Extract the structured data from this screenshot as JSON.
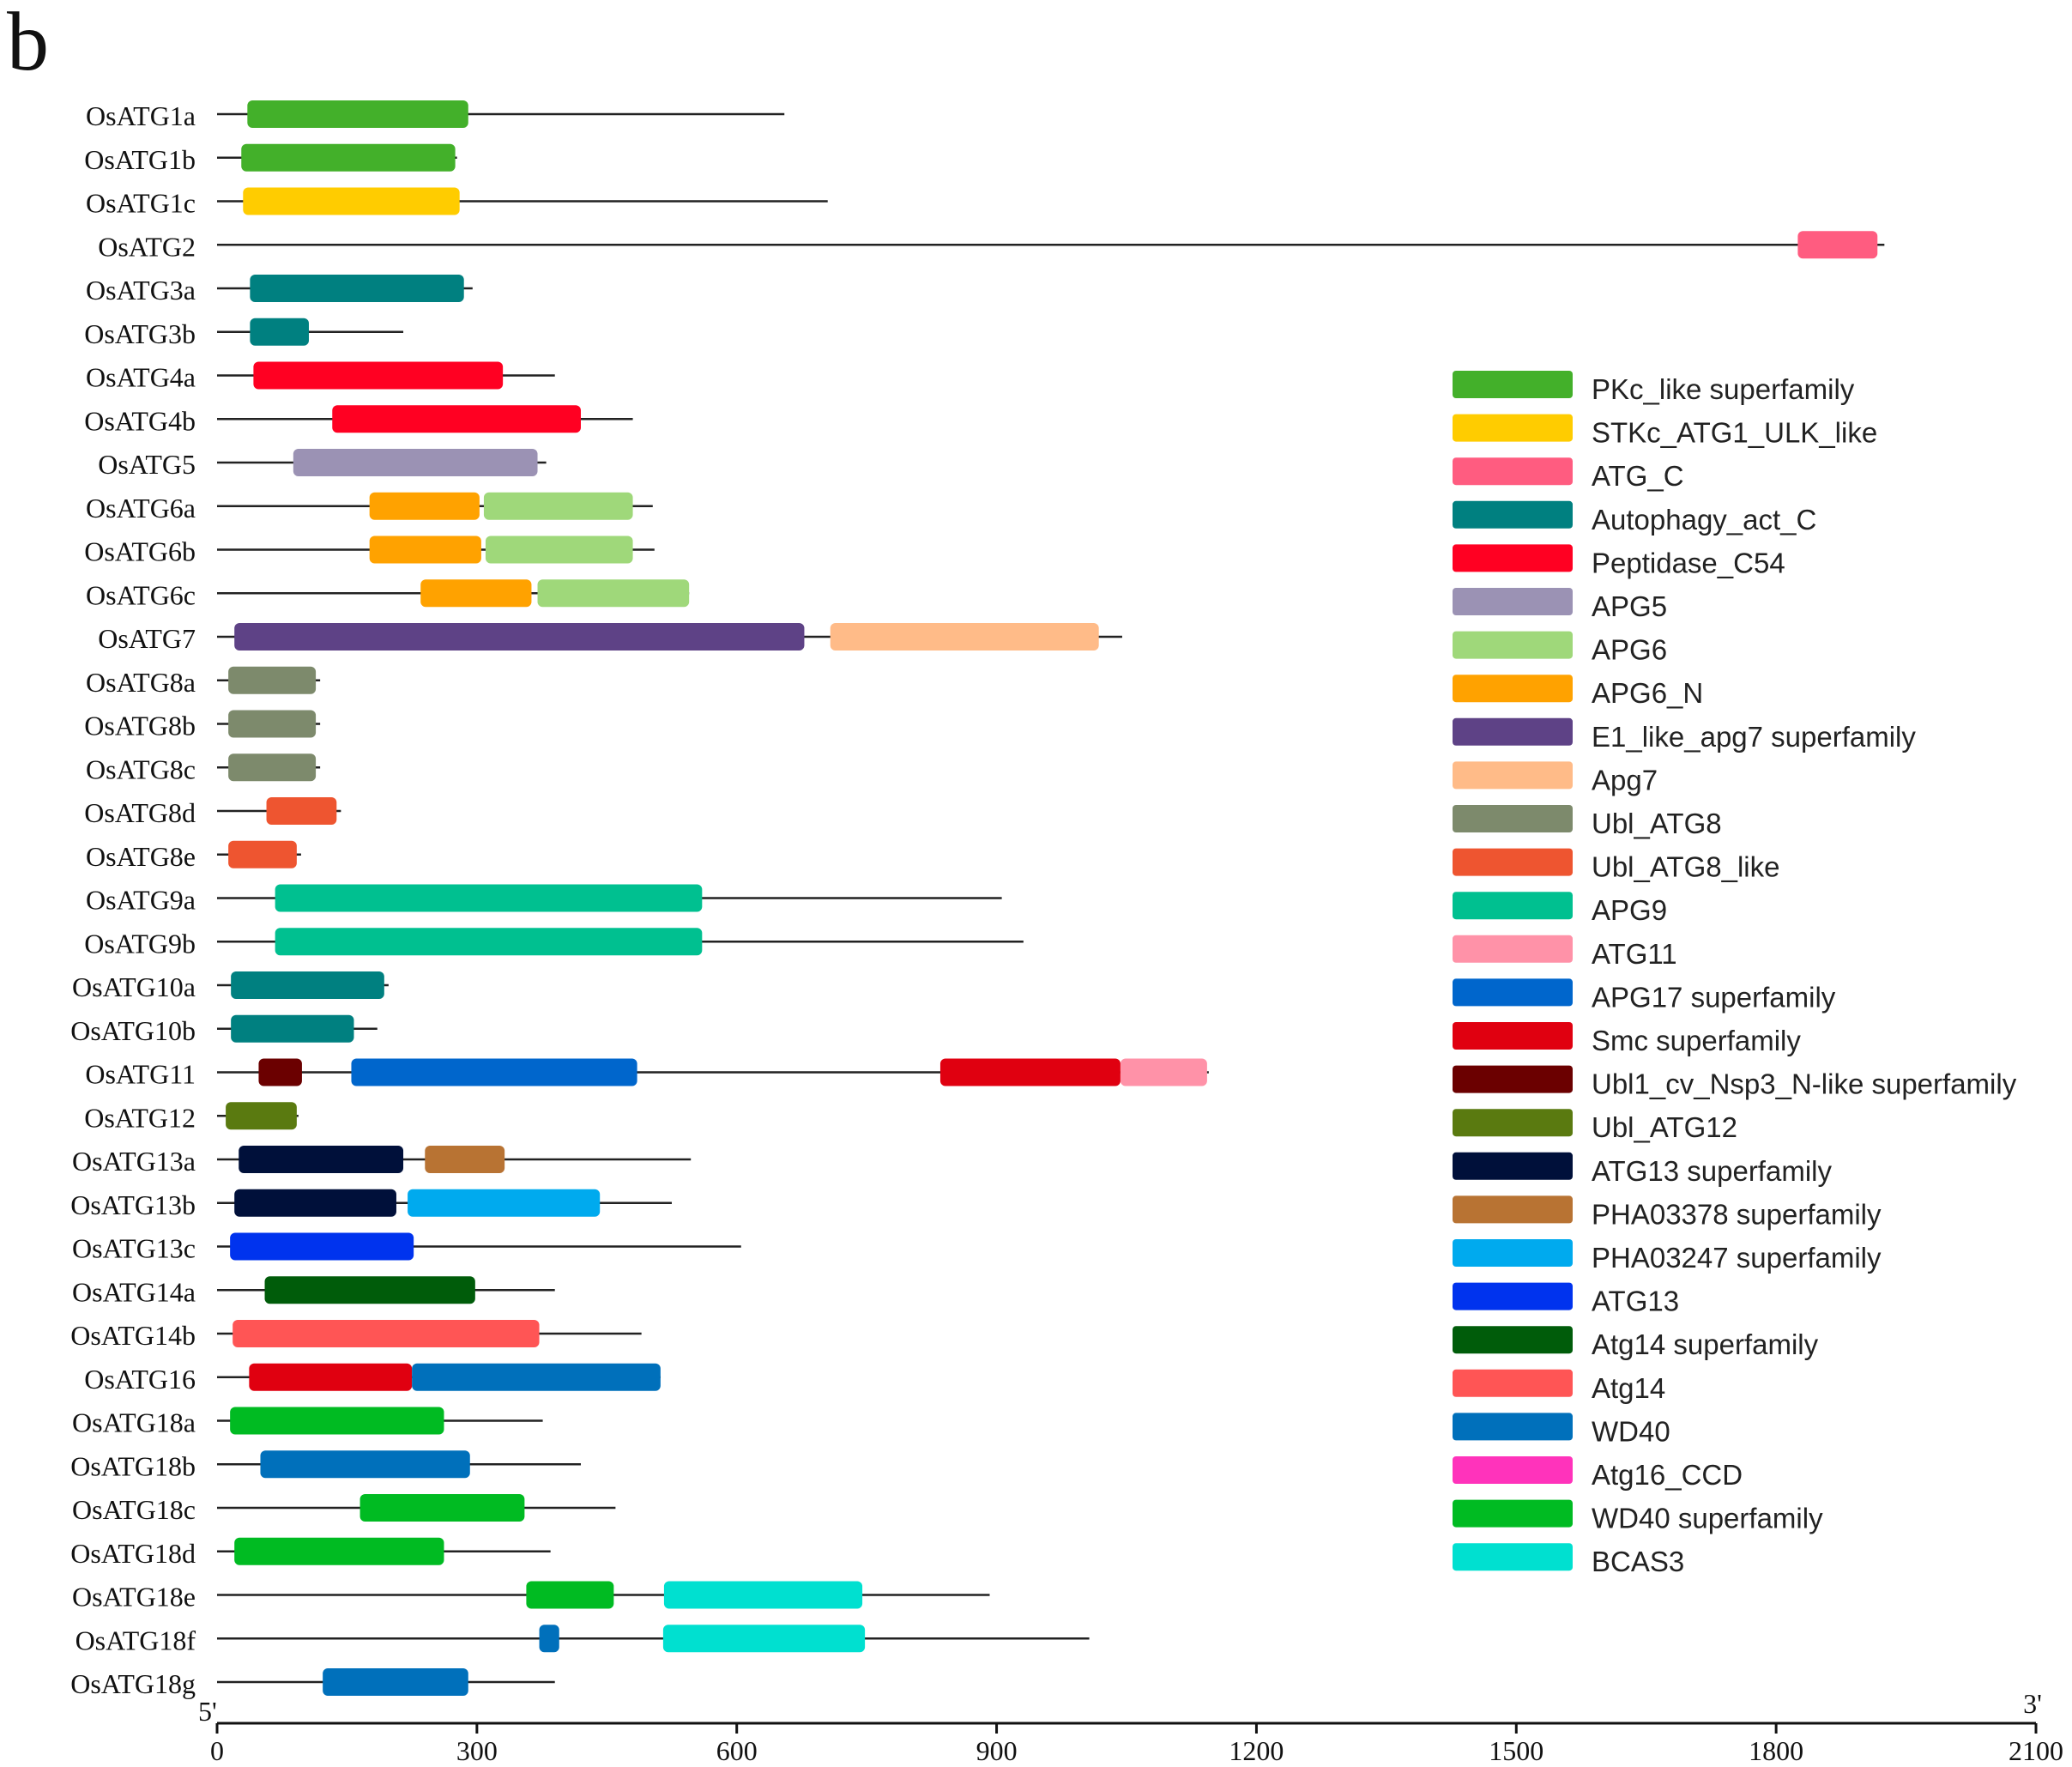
{
  "panel_letter": "b",
  "chart_data": {
    "type": "protein-domain-architecture",
    "x_axis": {
      "range": [
        0,
        2100
      ],
      "ticks": [
        0,
        300,
        600,
        900,
        1200,
        1500,
        1800,
        2100
      ],
      "start_label": "5'",
      "end_label": "3'"
    },
    "domains": [
      {
        "name": "PKc_like superfamily",
        "color": "#43b02a"
      },
      {
        "name": "STKc_ATG1_ULK_like",
        "color": "#ffcc00"
      },
      {
        "name": "ATG_C",
        "color": "#ff5c80"
      },
      {
        "name": "Autophagy_act_C",
        "color": "#008080"
      },
      {
        "name": "Peptidase_C54",
        "color": "#ff0022"
      },
      {
        "name": "APG5",
        "color": "#9b92b4"
      },
      {
        "name": "APG6",
        "color": "#9fd87a"
      },
      {
        "name": "APG6_N",
        "color": "#ffa200"
      },
      {
        "name": "E1_like_apg7 superfamily",
        "color": "#5e4286"
      },
      {
        "name": "Apg7",
        "color": "#ffbb88"
      },
      {
        "name": "Ubl_ATG8",
        "color": "#7d8a6c"
      },
      {
        "name": "Ubl_ATG8_like",
        "color": "#ee5530"
      },
      {
        "name": "APG9",
        "color": "#00c090"
      },
      {
        "name": "ATG11",
        "color": "#ff92a8"
      },
      {
        "name": "APG17 superfamily",
        "color": "#0066cc"
      },
      {
        "name": "Smc superfamily",
        "color": "#e00010"
      },
      {
        "name": "Ubl1_cv_Nsp3_N-like superfamily",
        "color": "#6b0000"
      },
      {
        "name": "Ubl_ATG12",
        "color": "#5a7a10"
      },
      {
        "name": "ATG13 superfamily",
        "color": "#00103a"
      },
      {
        "name": "PHA03378 superfamily",
        "color": "#b87333"
      },
      {
        "name": "PHA03247 superfamily",
        "color": "#00aaee"
      },
      {
        "name": "ATG13",
        "color": "#0033ee"
      },
      {
        "name": "Atg14 superfamily",
        "color": "#005c0a"
      },
      {
        "name": "Atg14",
        "color": "#ff5555"
      },
      {
        "name": "WD40",
        "color": "#0070bb"
      },
      {
        "name": "Atg16_CCD",
        "color": "#ff33bb"
      },
      {
        "name": "WD40 superfamily",
        "color": "#00bb22"
      },
      {
        "name": "BCAS3",
        "color": "#00e0d0"
      }
    ],
    "proteins": [
      {
        "name": "OsATG1a",
        "length": 655,
        "domains": [
          {
            "d": 0,
            "start": 35,
            "end": 290
          }
        ]
      },
      {
        "name": "OsATG1b",
        "length": 277,
        "domains": [
          {
            "d": 0,
            "start": 28,
            "end": 275
          }
        ]
      },
      {
        "name": "OsATG1c",
        "length": 705,
        "domains": [
          {
            "d": 1,
            "start": 30,
            "end": 280
          }
        ]
      },
      {
        "name": "OsATG2",
        "length": 1925,
        "domains": [
          {
            "d": 2,
            "start": 1825,
            "end": 1917
          }
        ]
      },
      {
        "name": "OsATG3a",
        "length": 295,
        "domains": [
          {
            "d": 3,
            "start": 38,
            "end": 285
          }
        ]
      },
      {
        "name": "OsATG3b",
        "length": 215,
        "domains": [
          {
            "d": 3,
            "start": 38,
            "end": 106
          }
        ]
      },
      {
        "name": "OsATG4a",
        "length": 390,
        "domains": [
          {
            "d": 4,
            "start": 42,
            "end": 330
          }
        ]
      },
      {
        "name": "OsATG4b",
        "length": 480,
        "domains": [
          {
            "d": 4,
            "start": 133,
            "end": 420
          }
        ]
      },
      {
        "name": "OsATG5",
        "length": 380,
        "domains": [
          {
            "d": 5,
            "start": 88,
            "end": 370
          }
        ]
      },
      {
        "name": "OsATG6a",
        "length": 503,
        "domains": [
          {
            "d": 7,
            "start": 176,
            "end": 303
          },
          {
            "d": 6,
            "start": 308,
            "end": 480
          }
        ]
      },
      {
        "name": "OsATG6b",
        "length": 505,
        "domains": [
          {
            "d": 7,
            "start": 176,
            "end": 305
          },
          {
            "d": 6,
            "start": 310,
            "end": 480
          }
        ]
      },
      {
        "name": "OsATG6c",
        "length": 545,
        "domains": [
          {
            "d": 7,
            "start": 235,
            "end": 363
          },
          {
            "d": 6,
            "start": 370,
            "end": 545
          }
        ]
      },
      {
        "name": "OsATG7",
        "length": 1045,
        "domains": [
          {
            "d": 8,
            "start": 20,
            "end": 678
          },
          {
            "d": 9,
            "start": 708,
            "end": 1018
          }
        ]
      },
      {
        "name": "OsATG8a",
        "length": 119,
        "domains": [
          {
            "d": 10,
            "start": 13,
            "end": 114
          }
        ]
      },
      {
        "name": "OsATG8b",
        "length": 119,
        "domains": [
          {
            "d": 10,
            "start": 13,
            "end": 114
          }
        ]
      },
      {
        "name": "OsATG8c",
        "length": 119,
        "domains": [
          {
            "d": 10,
            "start": 13,
            "end": 114
          }
        ]
      },
      {
        "name": "OsATG8d",
        "length": 143,
        "domains": [
          {
            "d": 11,
            "start": 57,
            "end": 138
          }
        ]
      },
      {
        "name": "OsATG8e",
        "length": 97,
        "domains": [
          {
            "d": 11,
            "start": 13,
            "end": 92
          }
        ]
      },
      {
        "name": "OsATG9a",
        "length": 906,
        "domains": [
          {
            "d": 12,
            "start": 67,
            "end": 560
          }
        ]
      },
      {
        "name": "OsATG9b",
        "length": 931,
        "domains": [
          {
            "d": 12,
            "start": 67,
            "end": 560
          }
        ]
      },
      {
        "name": "OsATG10a",
        "length": 198,
        "domains": [
          {
            "d": 3,
            "start": 16,
            "end": 193
          }
        ]
      },
      {
        "name": "OsATG10b",
        "length": 185,
        "domains": [
          {
            "d": 3,
            "start": 16,
            "end": 158
          }
        ]
      },
      {
        "name": "OsATG11",
        "length": 1145,
        "domains": [
          {
            "d": 16,
            "start": 48,
            "end": 98
          },
          {
            "d": 14,
            "start": 155,
            "end": 485
          },
          {
            "d": 15,
            "start": 835,
            "end": 1043
          },
          {
            "d": 13,
            "start": 1043,
            "end": 1143
          }
        ]
      },
      {
        "name": "OsATG12",
        "length": 94,
        "domains": [
          {
            "d": 17,
            "start": 10,
            "end": 92
          }
        ]
      },
      {
        "name": "OsATG13a",
        "length": 547,
        "domains": [
          {
            "d": 18,
            "start": 25,
            "end": 215
          },
          {
            "d": 19,
            "start": 240,
            "end": 332
          }
        ]
      },
      {
        "name": "OsATG13b",
        "length": 525,
        "domains": [
          {
            "d": 18,
            "start": 20,
            "end": 207
          },
          {
            "d": 20,
            "start": 220,
            "end": 442
          }
        ]
      },
      {
        "name": "OsATG13c",
        "length": 605,
        "domains": [
          {
            "d": 21,
            "start": 15,
            "end": 227
          }
        ]
      },
      {
        "name": "OsATG14a",
        "length": 390,
        "domains": [
          {
            "d": 22,
            "start": 55,
            "end": 298
          }
        ]
      },
      {
        "name": "OsATG14b",
        "length": 490,
        "domains": [
          {
            "d": 23,
            "start": 18,
            "end": 372
          }
        ]
      },
      {
        "name": "OsATG16",
        "length": 512,
        "domains": [
          {
            "d": 15,
            "start": 37,
            "end": 225
          },
          {
            "d": 24,
            "start": 225,
            "end": 512
          }
        ]
      },
      {
        "name": "OsATG18a",
        "length": 376,
        "domains": [
          {
            "d": 26,
            "start": 15,
            "end": 262
          }
        ]
      },
      {
        "name": "OsATG18b",
        "length": 420,
        "domains": [
          {
            "d": 24,
            "start": 50,
            "end": 292
          }
        ]
      },
      {
        "name": "OsATG18c",
        "length": 460,
        "domains": [
          {
            "d": 26,
            "start": 165,
            "end": 355
          }
        ]
      },
      {
        "name": "OsATG18d",
        "length": 385,
        "domains": [
          {
            "d": 26,
            "start": 20,
            "end": 262
          }
        ]
      },
      {
        "name": "OsATG18e",
        "length": 892,
        "domains": [
          {
            "d": 26,
            "start": 357,
            "end": 458
          },
          {
            "d": 27,
            "start": 516,
            "end": 745
          }
        ]
      },
      {
        "name": "OsATG18f",
        "length": 1007,
        "domains": [
          {
            "d": 24,
            "start": 372,
            "end": 395
          },
          {
            "d": 27,
            "start": 515,
            "end": 748
          }
        ]
      },
      {
        "name": "OsATG18g",
        "length": 390,
        "domains": [
          {
            "d": 24,
            "start": 122,
            "end": 290
          }
        ]
      }
    ]
  }
}
